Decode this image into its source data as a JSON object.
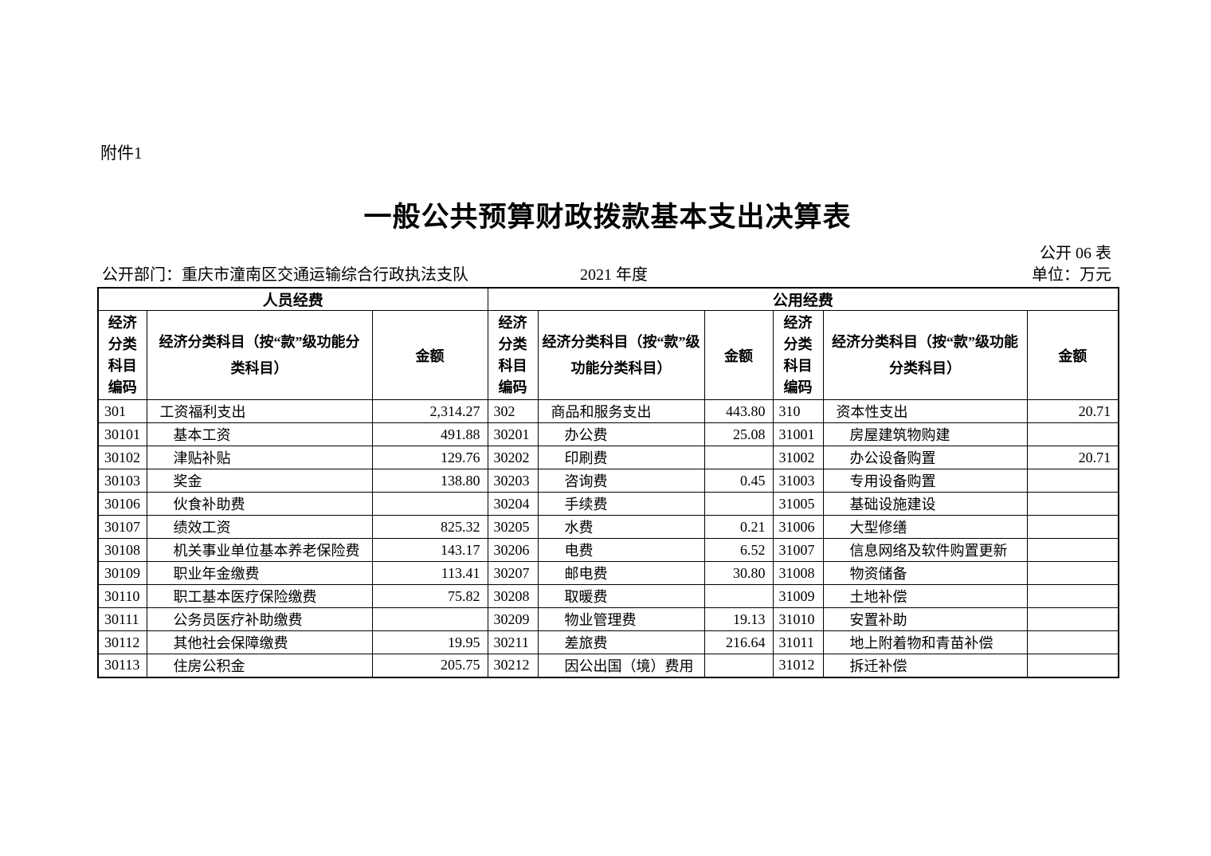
{
  "page": {
    "attachment": "附件1",
    "title": "一般公共预算财政拨款基本支出决算表",
    "table_no": "公开 06 表",
    "department": "公开部门：重庆市潼南区交通运输综合行政执法支队",
    "year": "2021 年度",
    "unit": "单位：万元"
  },
  "table": {
    "groups": {
      "personnel": "人员经费",
      "public": "公用经费"
    },
    "headers": {
      "code": "经济分类科目编码",
      "subject": "经济分类科目（按“款”级功能分类科目）",
      "amount": "金额"
    },
    "rows": [
      {
        "cells": [
          {
            "code": "301",
            "name": "工资福利支出",
            "amount": "2,314.27",
            "level": 0
          },
          {
            "code": "302",
            "name": "商品和服务支出",
            "amount": "443.80",
            "level": 0
          },
          {
            "code": "310",
            "name": "资本性支出",
            "amount": "20.71",
            "level": 0
          }
        ]
      },
      {
        "cells": [
          {
            "code": "30101",
            "name": "基本工资",
            "amount": "491.88",
            "level": 1
          },
          {
            "code": "30201",
            "name": "办公费",
            "amount": "25.08",
            "level": 1
          },
          {
            "code": "31001",
            "name": "房屋建筑物购建",
            "amount": "",
            "level": 1
          }
        ]
      },
      {
        "cells": [
          {
            "code": "30102",
            "name": "津贴补贴",
            "amount": "129.76",
            "level": 1
          },
          {
            "code": "30202",
            "name": "印刷费",
            "amount": "",
            "level": 1
          },
          {
            "code": "31002",
            "name": "办公设备购置",
            "amount": "20.71",
            "level": 1
          }
        ]
      },
      {
        "cells": [
          {
            "code": "30103",
            "name": "奖金",
            "amount": "138.80",
            "level": 1
          },
          {
            "code": "30203",
            "name": "咨询费",
            "amount": "0.45",
            "level": 1
          },
          {
            "code": "31003",
            "name": "专用设备购置",
            "amount": "",
            "level": 1
          }
        ]
      },
      {
        "cells": [
          {
            "code": "30106",
            "name": "伙食补助费",
            "amount": "",
            "level": 1
          },
          {
            "code": "30204",
            "name": "手续费",
            "amount": "",
            "level": 1
          },
          {
            "code": "31005",
            "name": "基础设施建设",
            "amount": "",
            "level": 1
          }
        ]
      },
      {
        "cells": [
          {
            "code": "30107",
            "name": "绩效工资",
            "amount": "825.32",
            "level": 1
          },
          {
            "code": "30205",
            "name": "水费",
            "amount": "0.21",
            "level": 1
          },
          {
            "code": "31006",
            "name": "大型修缮",
            "amount": "",
            "level": 1
          }
        ]
      },
      {
        "cells": [
          {
            "code": "30108",
            "name": "机关事业单位基本养老保险费",
            "amount": "143.17",
            "level": 1
          },
          {
            "code": "30206",
            "name": "电费",
            "amount": "6.52",
            "level": 1
          },
          {
            "code": "31007",
            "name": "信息网络及软件购置更新",
            "amount": "",
            "level": 1
          }
        ]
      },
      {
        "cells": [
          {
            "code": "30109",
            "name": "职业年金缴费",
            "amount": "113.41",
            "level": 1
          },
          {
            "code": "30207",
            "name": "邮电费",
            "amount": "30.80",
            "level": 1
          },
          {
            "code": "31008",
            "name": "物资储备",
            "amount": "",
            "level": 1
          }
        ]
      },
      {
        "cells": [
          {
            "code": "30110",
            "name": "职工基本医疗保险缴费",
            "amount": "75.82",
            "level": 1
          },
          {
            "code": "30208",
            "name": "取暖费",
            "amount": "",
            "level": 1
          },
          {
            "code": "31009",
            "name": "土地补偿",
            "amount": "",
            "level": 1
          }
        ]
      },
      {
        "cells": [
          {
            "code": "30111",
            "name": "公务员医疗补助缴费",
            "amount": "",
            "level": 1
          },
          {
            "code": "30209",
            "name": "物业管理费",
            "amount": "19.13",
            "level": 1
          },
          {
            "code": "31010",
            "name": "安置补助",
            "amount": "",
            "level": 1
          }
        ]
      },
      {
        "cells": [
          {
            "code": "30112",
            "name": "其他社会保障缴费",
            "amount": "19.95",
            "level": 1
          },
          {
            "code": "30211",
            "name": "差旅费",
            "amount": "216.64",
            "level": 1
          },
          {
            "code": "31011",
            "name": "地上附着物和青苗补偿",
            "amount": "",
            "level": 1
          }
        ]
      },
      {
        "cells": [
          {
            "code": "30113",
            "name": "住房公积金",
            "amount": "205.75",
            "level": 1
          },
          {
            "code": "30212",
            "name": "因公出国（境）费用",
            "amount": "",
            "level": 1
          },
          {
            "code": "31012",
            "name": "拆迁补偿",
            "amount": "",
            "level": 1
          }
        ]
      }
    ]
  }
}
